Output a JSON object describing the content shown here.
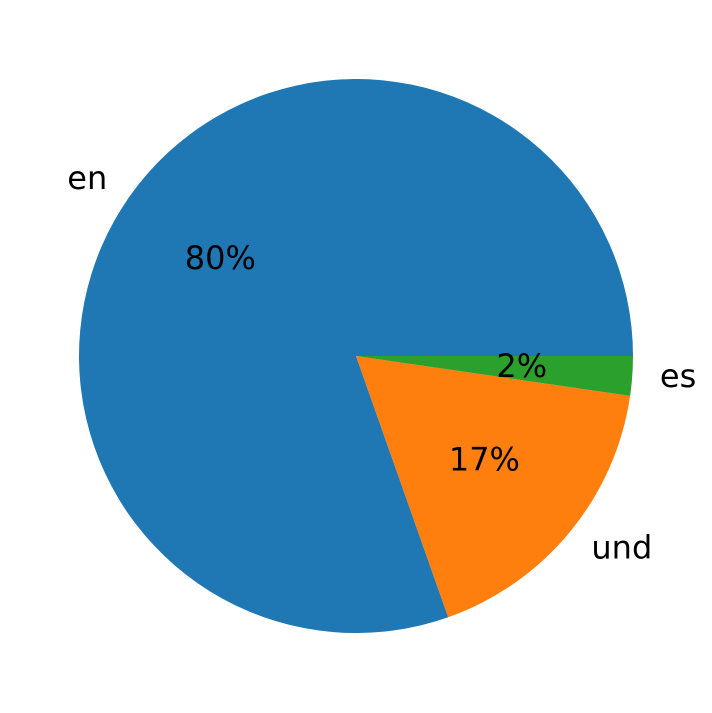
{
  "chart_data": {
    "type": "pie",
    "categories": [
      "en",
      "und",
      "es"
    ],
    "values": [
      80.4,
      17.3,
      2.3
    ],
    "value_labels": [
      "80%",
      "17%",
      "2%"
    ],
    "colors": [
      "#1f77b4",
      "#ff7f0e",
      "#2ca02c"
    ]
  }
}
